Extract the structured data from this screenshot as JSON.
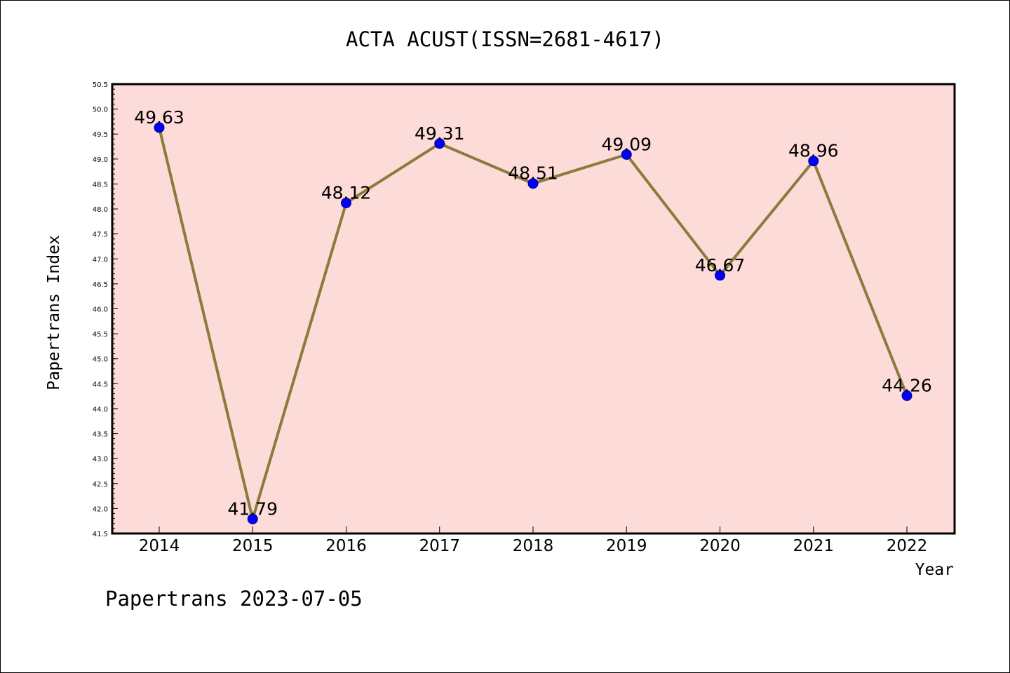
{
  "chart_data": {
    "type": "line",
    "title": "ACTA ACUST(ISSN=2681-4617)",
    "xlabel": "Year",
    "ylabel": "Papertrans Index",
    "categories": [
      "2014",
      "2015",
      "2016",
      "2017",
      "2018",
      "2019",
      "2020",
      "2021",
      "2022"
    ],
    "series": [
      {
        "values": [
          49.63,
          41.79,
          48.12,
          49.31,
          48.51,
          49.09,
          46.67,
          48.96,
          44.26
        ],
        "labels": [
          "49.63",
          "41.79",
          "48.12",
          "49.31",
          "48.51",
          "49.09",
          "46.67",
          "48.96",
          "44.26"
        ]
      }
    ],
    "ylim": [
      41.5,
      50.5
    ],
    "yticks": [
      "41.5",
      "42.0",
      "42.5",
      "43.0",
      "43.5",
      "44.0",
      "44.5",
      "45.0",
      "45.5",
      "46.0",
      "46.5",
      "47.0",
      "47.5",
      "48.0",
      "48.5",
      "49.0",
      "49.5",
      "50.0",
      "50.5"
    ],
    "grid": false,
    "colors": {
      "plot_background": "#fddbd9",
      "line": "#8c7b3a",
      "marker": "#0000ff"
    }
  },
  "watermark": "Papertrans 2023-07-05"
}
